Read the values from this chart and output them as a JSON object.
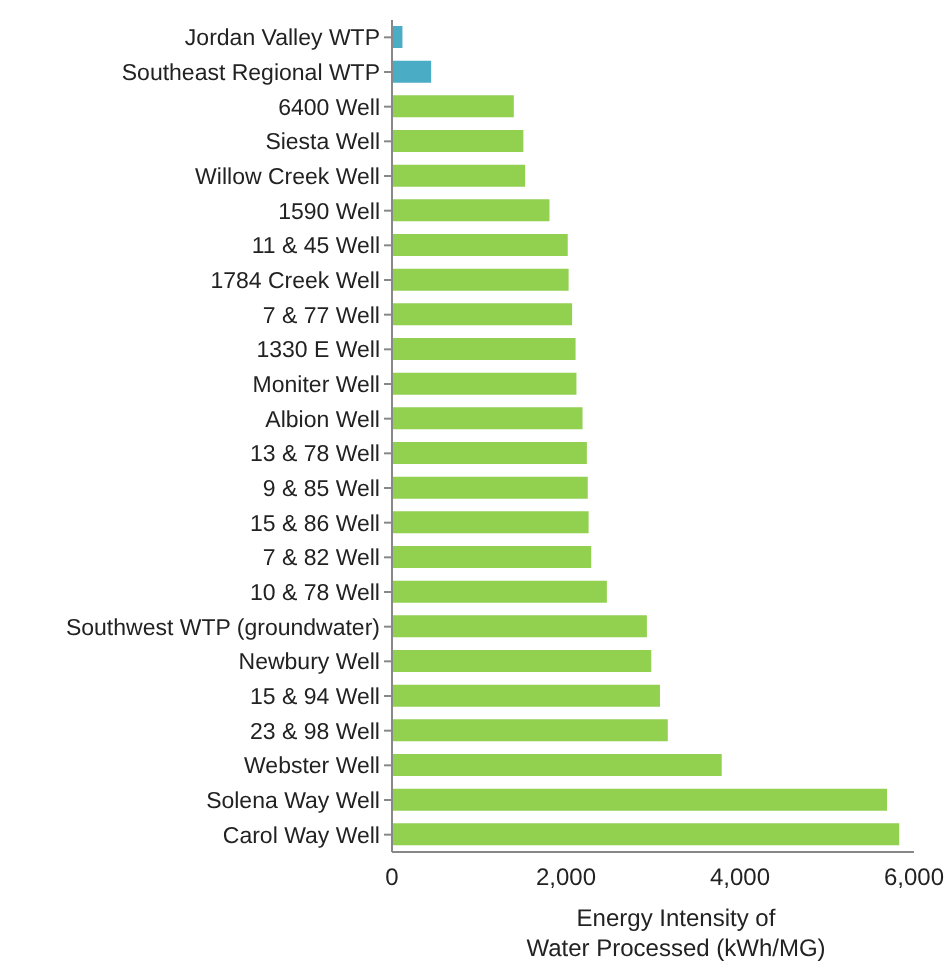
{
  "chart_data": {
    "type": "bar",
    "orientation": "horizontal",
    "xlabel": "Energy Intensity of Water Processed (kWh/MG)",
    "categories": [
      "Jordan Valley WTP",
      "Southeast Regional WTP",
      "6400 Well",
      "Siesta Well",
      "Willow Creek Well",
      "1590 Well",
      "11 & 45 Well",
      "1784 Creek Well",
      "7 & 77 Well",
      "1330 E Well",
      "Moniter Well",
      "Albion Well",
      "13 & 78 Well",
      "9 & 85 Well",
      "15 & 86 Well",
      "7 & 82 Well",
      "10 & 78 Well",
      "Southwest WTP (groundwater)",
      "Newbury Well",
      "15 & 94 Well",
      "23 & 98 Well",
      "Webster Well",
      "Solena Way Well",
      "Carol Way Well"
    ],
    "values": [
      120,
      450,
      1400,
      1510,
      1530,
      1810,
      2020,
      2030,
      2070,
      2110,
      2120,
      2190,
      2240,
      2250,
      2260,
      2290,
      2470,
      2930,
      2980,
      3080,
      3170,
      3790,
      5690,
      5830
    ],
    "colors": [
      "#4bacc6",
      "#4bacc6",
      "#92d050",
      "#92d050",
      "#92d050",
      "#92d050",
      "#92d050",
      "#92d050",
      "#92d050",
      "#92d050",
      "#92d050",
      "#92d050",
      "#92d050",
      "#92d050",
      "#92d050",
      "#92d050",
      "#92d050",
      "#92d050",
      "#92d050",
      "#92d050",
      "#92d050",
      "#92d050",
      "#92d050",
      "#92d050"
    ],
    "xlim": [
      0,
      6000
    ],
    "xticks": [
      {
        "value": 0,
        "label": "0"
      },
      {
        "value": 2000,
        "label": "2,000"
      },
      {
        "value": 4000,
        "label": "4,000"
      },
      {
        "value": 6000,
        "label": "6,000"
      }
    ],
    "grid": false,
    "legend": false
  }
}
